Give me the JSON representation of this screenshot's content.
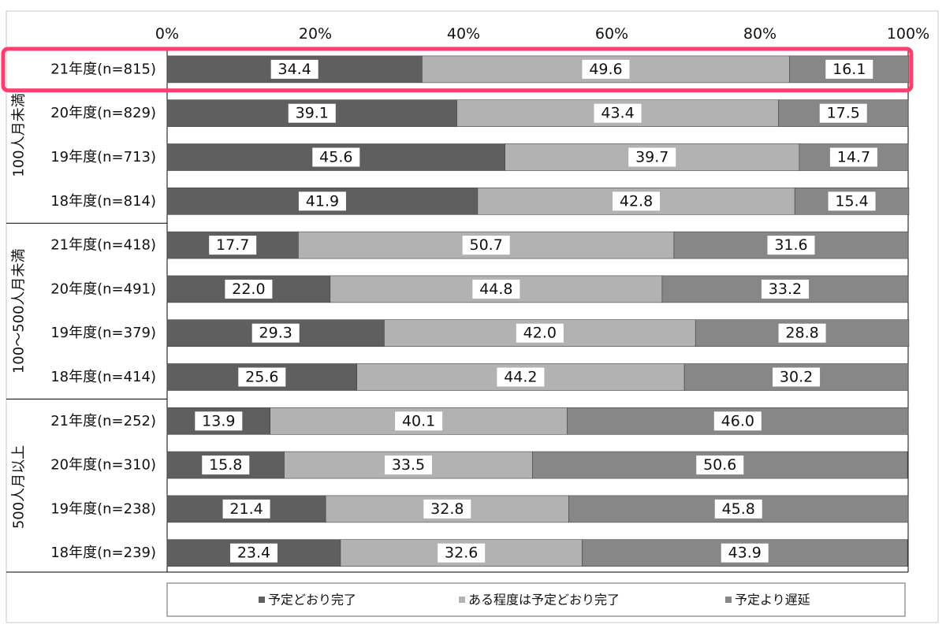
{
  "chart_data": {
    "type": "bar",
    "orientation": "horizontal",
    "stacked": "100%",
    "title": "",
    "x_tick_labels": [
      "0%",
      "20%",
      "40%",
      "60%",
      "80%",
      "100%"
    ],
    "xlim": [
      0,
      100
    ],
    "legend_position": "bottom",
    "groups": [
      {
        "name": "100人月未満",
        "categories": [
          "21年度(n=815)",
          "20年度(n=829)",
          "19年度(n=713)",
          "18年度(n=814)"
        ]
      },
      {
        "name": "100～500人月未満",
        "categories": [
          "21年度(n=418)",
          "20年度(n=491)",
          "19年度(n=379)",
          "18年度(n=414)"
        ]
      },
      {
        "name": "500人月以上",
        "categories": [
          "21年度(n=252)",
          "20年度(n=310)",
          "19年度(n=238)",
          "18年度(n=239)"
        ]
      }
    ],
    "series": [
      {
        "name": "予定どおり完了",
        "color": "#5f5f5f",
        "values": [
          34.4,
          39.1,
          45.6,
          41.9,
          17.7,
          22.0,
          29.3,
          25.6,
          13.9,
          15.8,
          21.4,
          23.4
        ]
      },
      {
        "name": "ある程度は予定どおり完了",
        "color": "#b2b2b2",
        "values": [
          49.6,
          43.4,
          39.7,
          42.8,
          50.7,
          44.8,
          42.0,
          44.2,
          40.1,
          33.5,
          32.8,
          32.6
        ]
      },
      {
        "name": "予定より遅延",
        "color": "#878787",
        "values": [
          16.1,
          17.5,
          14.7,
          15.4,
          31.6,
          33.2,
          28.8,
          30.2,
          46.0,
          50.6,
          45.8,
          43.9
        ]
      }
    ],
    "highlight": {
      "row_index": 0,
      "color": "#ff3d6e"
    }
  }
}
